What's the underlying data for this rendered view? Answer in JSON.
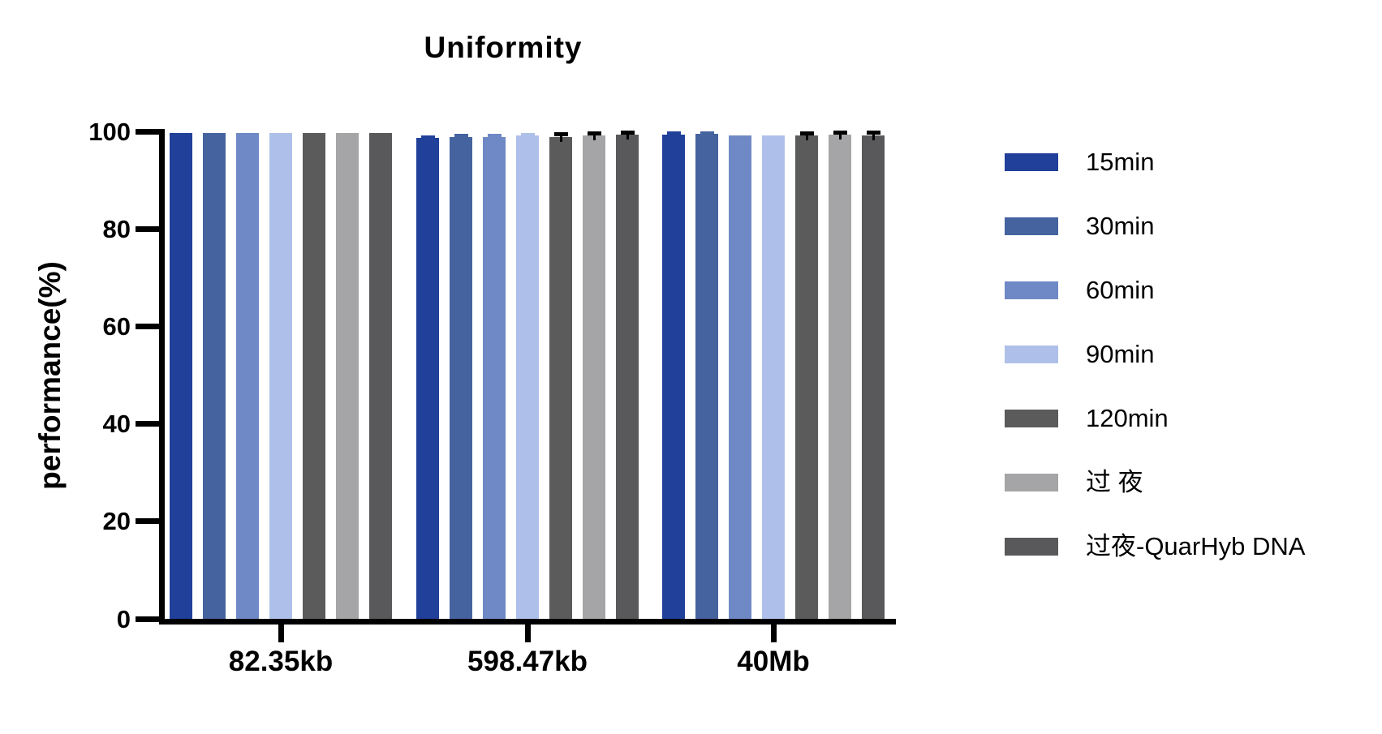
{
  "chart_data": {
    "type": "bar",
    "title": "Uniformity",
    "xlabel": "",
    "ylabel": "performance(%)",
    "ylim": [
      0,
      100
    ],
    "yticks": [
      0,
      20,
      40,
      60,
      80,
      100
    ],
    "grid": false,
    "legend_position": "right",
    "categories": [
      "82.35kb",
      "598.47kb",
      "40Mb"
    ],
    "series": [
      {
        "name": "15min",
        "color": "#21409A",
        "err_color": "#21409A",
        "values": [
          99.6,
          98.6,
          99.3
        ],
        "errors": [
          0,
          0.25,
          0.3
        ]
      },
      {
        "name": "30min",
        "color": "#45639F",
        "err_color": "#45639F",
        "values": [
          99.7,
          98.9,
          99.5
        ],
        "errors": [
          0,
          0.3,
          0.25
        ]
      },
      {
        "name": "60min",
        "color": "#6E89C5",
        "err_color": "#6E89C5",
        "values": [
          99.7,
          98.8,
          99.1
        ],
        "errors": [
          0,
          0.3,
          0
        ]
      },
      {
        "name": "90min",
        "color": "#AEC0EA",
        "err_color": "#AEC0EA",
        "values": [
          99.7,
          99.1,
          99.1
        ],
        "errors": [
          0,
          0.25,
          0
        ]
      },
      {
        "name": "120min",
        "color": "#5B5B5B",
        "err_color": "#000000",
        "values": [
          99.7,
          98.9,
          99.2
        ],
        "errors": [
          0,
          0.55,
          0.55
        ]
      },
      {
        "name": "过 夜",
        "color": "#A5A5A8",
        "err_color": "#000000",
        "values": [
          99.7,
          99.2,
          99.4
        ],
        "errors": [
          0,
          0.45,
          0.4
        ]
      },
      {
        "name": "过夜-QuarHyb DNA",
        "color": "#59595B",
        "err_color": "#000000",
        "values": [
          99.7,
          99.3,
          99.1
        ],
        "errors": [
          0,
          0.5,
          0.7
        ]
      }
    ],
    "axis_color": "#000000",
    "text_color": "#000000"
  }
}
